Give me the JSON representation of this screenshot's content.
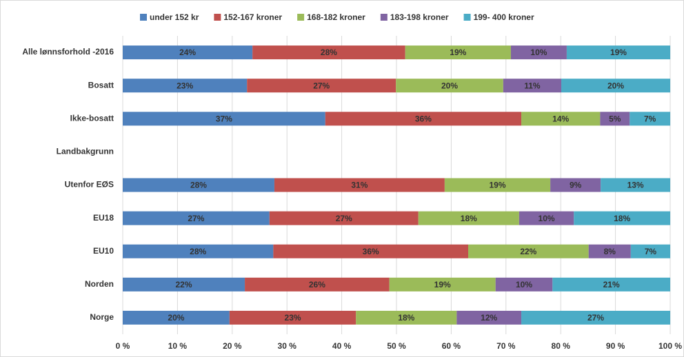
{
  "chart_data": {
    "type": "stacked-bar-horizontal",
    "categories": [
      "Alle lønnsforhold -2016",
      "Bosatt",
      "Ikke-bosatt",
      "Landbakgrunn",
      "Utenfor EØS",
      "EU18",
      "EU10",
      "Norden",
      "Norge"
    ],
    "series": [
      {
        "name": "under 152 kr",
        "color": "#4f81bd",
        "values": [
          23.7,
          22.7,
          37.0,
          null,
          27.7,
          26.8,
          27.5,
          22.3,
          19.5
        ],
        "value_labels": [
          "24%",
          "23%",
          "37%",
          null,
          "28%",
          "27%",
          "28%",
          "22%",
          "20%"
        ]
      },
      {
        "name": "152-167 kroner",
        "color": "#c0504d",
        "values": [
          27.9,
          27.2,
          35.8,
          null,
          31.1,
          27.2,
          35.6,
          26.4,
          23.1
        ],
        "value_labels": [
          "28%",
          "27%",
          "36%",
          null,
          "31%",
          "27%",
          "36%",
          "26%",
          "23%"
        ]
      },
      {
        "name": "168-182 kroner",
        "color": "#9bbb59",
        "values": [
          19.3,
          19.6,
          14.4,
          null,
          19.3,
          18.4,
          22.0,
          19.4,
          18.4
        ],
        "value_labels": [
          "19%",
          "20%",
          "14%",
          null,
          "19%",
          "18%",
          "22%",
          "19%",
          "18%"
        ]
      },
      {
        "name": "183-198 kroner",
        "color": "#8064a2",
        "values": [
          10.2,
          10.6,
          5.4,
          null,
          9.2,
          10.0,
          7.7,
          10.4,
          11.8
        ],
        "value_labels": [
          "10%",
          "11%",
          "5%",
          null,
          "9%",
          "10%",
          "8%",
          "10%",
          "12%"
        ]
      },
      {
        "name": "199- 400 kroner",
        "color": "#4bacc6",
        "values": [
          18.9,
          19.9,
          7.4,
          null,
          12.7,
          17.6,
          7.2,
          21.5,
          27.2
        ],
        "value_labels": [
          "19%",
          "20%",
          "7%",
          null,
          "13%",
          "18%",
          "7%",
          "21%",
          "27%"
        ]
      }
    ],
    "xlim": [
      0,
      100
    ],
    "xticks": [
      {
        "value": 0,
        "label": "0 %"
      },
      {
        "value": 10,
        "label": "10 %"
      },
      {
        "value": 20,
        "label": "20 %"
      },
      {
        "value": 30,
        "label": "30 %"
      },
      {
        "value": 40,
        "label": "40 %"
      },
      {
        "value": 50,
        "label": "50 %"
      },
      {
        "value": 60,
        "label": "60 %"
      },
      {
        "value": 70,
        "label": "70 %"
      },
      {
        "value": 80,
        "label": "80 %"
      },
      {
        "value": 90,
        "label": "90 %"
      },
      {
        "value": 100,
        "label": "100 %"
      }
    ],
    "grid": true,
    "legend": "top"
  }
}
